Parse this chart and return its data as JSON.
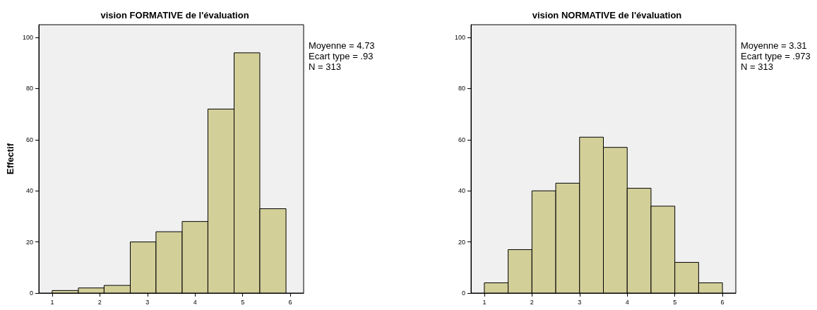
{
  "chart_data": [
    {
      "type": "histogram",
      "title": "vision FORMATIVE de l'évaluation",
      "ylabel": "Effectif",
      "annotations": [
        "Moyenne = 4.73",
        "Ecart type = .93",
        "N = 313"
      ],
      "bins": [
        1,
        1.55,
        2.09,
        2.64,
        3.18,
        3.73,
        4.27,
        4.82,
        5.36,
        5.91
      ],
      "values": [
        1,
        2,
        3,
        20,
        24,
        28,
        72,
        94,
        33
      ],
      "color": "#d3cf99",
      "xlim": [
        0.72,
        6.28
      ],
      "xticks": [
        1,
        2,
        3,
        4,
        5,
        6
      ],
      "ylim": [
        0,
        105
      ],
      "yticks": [
        0,
        20,
        40,
        60,
        80,
        100
      ]
    },
    {
      "type": "histogram",
      "title": "vision NORMATIVE de l'évaluation",
      "annotations": [
        "Moyenne = 3.31",
        "Ecart type = .973",
        "N = 313"
      ],
      "bins": [
        1,
        1.5,
        2,
        2.5,
        3,
        3.5,
        4,
        4.5,
        5,
        5.5,
        6
      ],
      "values": [
        4,
        17,
        40,
        43,
        61,
        57,
        41,
        34,
        12,
        4
      ],
      "color": "#d3cf99",
      "xlim": [
        0.72,
        6.28
      ],
      "xticks": [
        1,
        2,
        3,
        4,
        5,
        6
      ],
      "ylim": [
        0,
        105
      ],
      "yticks": [
        0,
        20,
        40,
        60,
        80,
        100
      ]
    }
  ]
}
